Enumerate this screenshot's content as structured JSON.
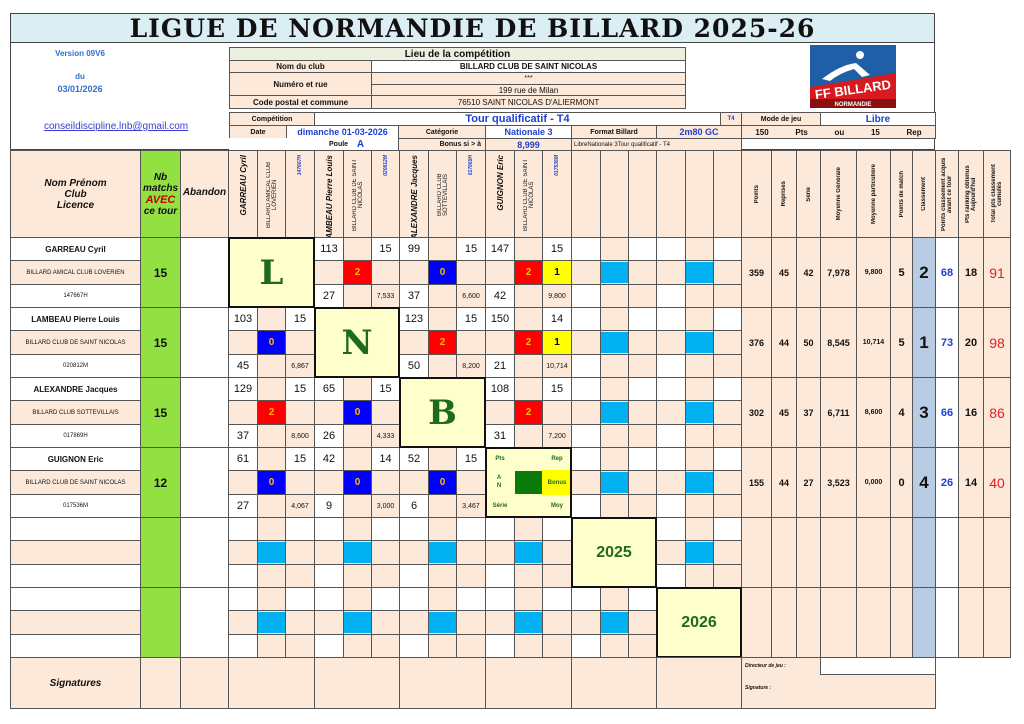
{
  "title": "LIGUE DE NORMANDIE DE BILLARD 2025-26",
  "version": "Version 09V6",
  "du": "du",
  "version_date": "03/01/2026",
  "email": "conseildiscipline.lnb@gmail.com",
  "logo": {
    "text": "FF BILLARD",
    "sub": "NORMANDIE",
    "colors": {
      "blue": "#1f5fa8",
      "red": "#d71920"
    }
  },
  "lieu": {
    "header": "Lieu de la compétition",
    "club_label": "Nom du club",
    "club": "BILLARD CLUB DE SAINT NICOLAS",
    "rue_label": "Numéro et rue",
    "rue_line1": "***",
    "rue_line2": "199 rue de Milan",
    "cp_label": "Code postal et commune",
    "cp": "76510  SAINT NICOLAS D'ALIERMONT"
  },
  "competition": {
    "label": "Compétition",
    "value": "Tour qualificatif - T4",
    "code": "T4",
    "mode_label": "Mode de jeu",
    "mode": "Libre",
    "date_label": "Date",
    "date": "dimanche 01-03-2026",
    "cat_label": "Catégorie",
    "cat": "Nationale 3",
    "format_label": "Format Billard",
    "format": "2m80 GC",
    "pts": "150",
    "pts_unit": "Pts",
    "ou": "ou",
    "rep": "15",
    "rep_unit": "Rep",
    "poule_label": "Poule",
    "poule": "A",
    "bonus_label": "Bonus si > à",
    "bonus": "8,999",
    "concat": "LibreNationale 3Tour qualificatif - T4"
  },
  "headers": {
    "name": [
      "Nom  Prénom",
      "Club",
      "Licence"
    ],
    "nb": [
      "Nb",
      "matchs"
    ],
    "avec": "AVEC",
    "ce_tour": "ce tour",
    "abandon": "Abandon",
    "stats": [
      "Points",
      "Reprises",
      "Série",
      "Moyenne Générale",
      "Moyenne particulière",
      "Points de match",
      "Classement",
      "Points  classement acquis avant ce tour",
      "Pts ranking obtenus Aujourd'hui",
      "Total pts classement cumulés"
    ]
  },
  "players": [
    {
      "name": "GARREAU Cyril",
      "club": "BILLARD AMICAL CLUB LOVERIEN",
      "licence": "147667H",
      "nb": "15",
      "stats": [
        "359",
        "45",
        "42",
        "7,978",
        "9,800",
        "5",
        "2",
        "68",
        "18",
        "91"
      ]
    },
    {
      "name": "LAMBEAU Pierre Louis",
      "club": "BILLARD CLUB DE SAINT NICOLAS",
      "licence": "020812M",
      "nb": "15",
      "stats": [
        "376",
        "44",
        "50",
        "8,545",
        "10,714",
        "5",
        "1",
        "73",
        "20",
        "98"
      ]
    },
    {
      "name": "ALEXANDRE Jacques",
      "club": "BILLARD CLUB SOTTEVILLAIS",
      "licence": "017869H",
      "nb": "15",
      "stats": [
        "302",
        "45",
        "37",
        "6,711",
        "8,600",
        "4",
        "3",
        "66",
        "16",
        "86"
      ]
    },
    {
      "name": "GUIGNON Eric",
      "club": "BILLARD CLUB DE SAINT NICOLAS",
      "licence": "017536M",
      "nb": "12",
      "stats": [
        "155",
        "44",
        "27",
        "3,523",
        "0,000",
        "0",
        "4",
        "26",
        "14",
        "40"
      ]
    }
  ],
  "diagonal": [
    "L",
    "N",
    "B"
  ],
  "legend": {
    "pts": "Pts",
    "rep": "Rep",
    "an": "A N",
    "bonus": "Bonus",
    "serie": "Série",
    "moy": "Moy"
  },
  "years": [
    "2025",
    "2026"
  ],
  "matches": [
    [
      null,
      {
        "pts": "113",
        "rep": "15",
        "mp": "2",
        "serie": "27",
        "moy": "7,533"
      },
      {
        "pts": "99",
        "rep": "15",
        "mp": "0",
        "serie": "37",
        "moy": "6,600"
      },
      {
        "pts": "147",
        "rep": "15",
        "mp": "2",
        "bonus": "1",
        "serie": "42",
        "moy": "9,800"
      }
    ],
    [
      {
        "pts": "103",
        "rep": "15",
        "mp": "0",
        "serie": "45",
        "moy": "6,867"
      },
      null,
      {
        "pts": "123",
        "rep": "15",
        "mp": "2",
        "serie": "50",
        "moy": "8,200"
      },
      {
        "pts": "150",
        "rep": "14",
        "mp": "2",
        "bonus": "1",
        "serie": "21",
        "moy": "10,714"
      }
    ],
    [
      {
        "pts": "129",
        "rep": "15",
        "mp": "2",
        "serie": "37",
        "moy": "8,600"
      },
      {
        "pts": "65",
        "rep": "15",
        "mp": "0",
        "serie": "26",
        "moy": "4,333"
      },
      null,
      {
        "pts": "108",
        "rep": "15",
        "mp": "2",
        "serie": "31",
        "moy": "7,200"
      }
    ],
    [
      {
        "pts": "61",
        "rep": "15",
        "mp": "0",
        "serie": "27",
        "moy": "4,067"
      },
      {
        "pts": "42",
        "rep": "14",
        "mp": "0",
        "serie": "9",
        "moy": "3,000"
      },
      {
        "pts": "52",
        "rep": "15",
        "mp": "0",
        "serie": "6",
        "moy": "3,467"
      },
      null
    ]
  ],
  "footer": {
    "signatures": "Signatures",
    "director": "Directeur de jeu :",
    "signature": "Signature :"
  },
  "colors": {
    "peach": "#fde9d9",
    "green": "#92e042",
    "win": "#ff0000",
    "loss": "#0000ff",
    "bonus": "#ffff00",
    "empty": "#00b0f0",
    "diag": "#ffffcc",
    "rank": "#b8cce4"
  }
}
